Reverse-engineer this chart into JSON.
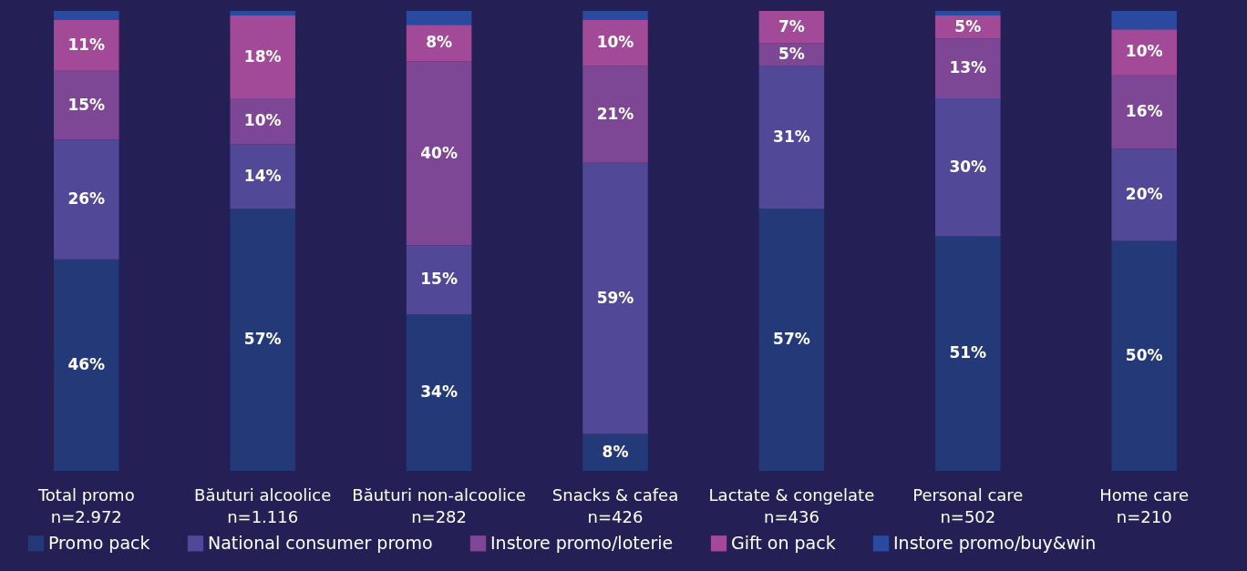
{
  "chart_data": {
    "type": "bar",
    "stacked": true,
    "categories": [
      "Total promo\nn=2.972",
      "Băuturi alcoolice\nn=1.116",
      "Băuturi non-alcoolice\nn=282",
      "Snacks & cafea\nn=426",
      "Lactate & congelate\nn=436",
      "Personal care\nn=502",
      "Home care\nn=210"
    ],
    "ylim": [
      0,
      100
    ],
    "tick_labels": "x",
    "grid": false,
    "legend": "bottom",
    "series": [
      {
        "name": "Promo pack",
        "color": "#243a78",
        "values": [
          46,
          57,
          34,
          8,
          57,
          51,
          50
        ],
        "value_labels": [
          "46%",
          "57%",
          "34%",
          "8%",
          "57%",
          "51%",
          "50%"
        ]
      },
      {
        "name": "National consumer promo",
        "color": "#524898",
        "values": [
          26,
          14,
          15,
          59,
          31,
          30,
          20
        ],
        "value_labels": [
          "26%",
          "14%",
          "15%",
          "59%",
          "31%",
          "30%",
          "20%"
        ]
      },
      {
        "name": "Instore promo/loterie",
        "color": "#7e4796",
        "values": [
          15,
          10,
          40,
          21,
          5,
          13,
          16
        ],
        "value_labels": [
          "15%",
          "10%",
          "40%",
          "21%",
          "5%",
          "13%",
          "16%"
        ]
      },
      {
        "name": "Gift on pack",
        "color": "#a24a98",
        "values": [
          11,
          18,
          8,
          10,
          7,
          5,
          10
        ],
        "value_labels": [
          "11%",
          "18%",
          "8%",
          "10%",
          "7%",
          "5%",
          "10%"
        ]
      },
      {
        "name": "Instore promo/buy&win",
        "color": "#2a4aa0",
        "values": [
          2,
          1,
          3,
          2,
          0,
          1,
          4
        ]
      }
    ]
  }
}
